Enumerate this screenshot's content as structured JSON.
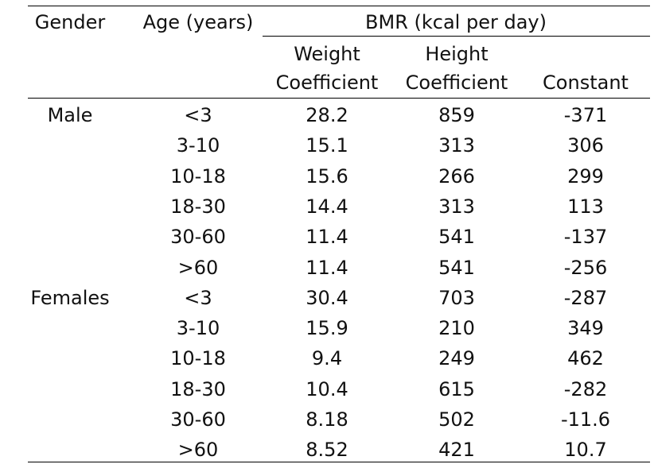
{
  "table": {
    "header": {
      "gender": "Gender",
      "age": "Age (years)",
      "bmr_group": "BMR (kcal per day)",
      "weight_line1": "Weight",
      "weight_line2": "Coefficient",
      "height_line1": "Height",
      "height_line2": "Coefficient",
      "constant": "Constant"
    },
    "rows": [
      {
        "gender": "Male",
        "age": "<3",
        "weight": "28.2",
        "height": "859",
        "constant": "-371"
      },
      {
        "gender": "",
        "age": "3-10",
        "weight": "15.1",
        "height": "313",
        "constant": "306"
      },
      {
        "gender": "",
        "age": "10-18",
        "weight": "15.6",
        "height": "266",
        "constant": "299"
      },
      {
        "gender": "",
        "age": "18-30",
        "weight": "14.4",
        "height": "313",
        "constant": "113"
      },
      {
        "gender": "",
        "age": "30-60",
        "weight": "11.4",
        "height": "541",
        "constant": "-137"
      },
      {
        "gender": "",
        "age": ">60",
        "weight": "11.4",
        "height": "541",
        "constant": "-256"
      },
      {
        "gender": "Females",
        "age": "<3",
        "weight": "30.4",
        "height": "703",
        "constant": "-287"
      },
      {
        "gender": "",
        "age": "3-10",
        "weight": "15.9",
        "height": "210",
        "constant": "349"
      },
      {
        "gender": "",
        "age": "10-18",
        "weight": "9.4",
        "height": "249",
        "constant": "462"
      },
      {
        "gender": "",
        "age": "18-30",
        "weight": "10.4",
        "height": "615",
        "constant": "-282"
      },
      {
        "gender": "",
        "age": "30-60",
        "weight": "8.18",
        "height": "502",
        "constant": "-11.6"
      },
      {
        "gender": "",
        "age": ">60",
        "weight": "8.52",
        "height": "421",
        "constant": "10.7"
      }
    ]
  }
}
